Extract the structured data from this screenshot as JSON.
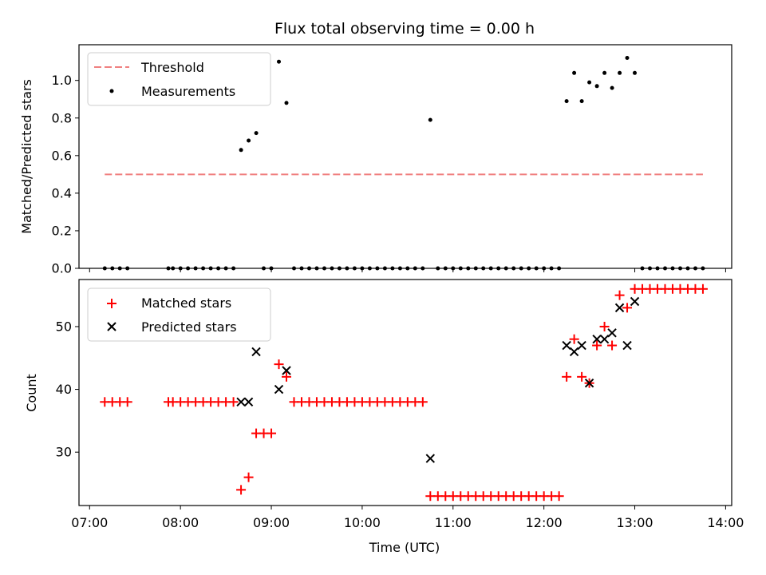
{
  "chart_data": [
    {
      "type": "scatter",
      "title": "Flux total observing time = 0.00 h",
      "xlabel": "",
      "ylabel": "Matched/Predicted stars",
      "ylim": [
        0,
        1.19
      ],
      "xlim": [
        "06:53",
        "14:04"
      ],
      "yticks": [
        "0.0",
        "0.2",
        "0.4",
        "0.6",
        "0.8",
        "1.0"
      ],
      "legend_position": "top-left",
      "grid": false,
      "threshold": {
        "name": "Threshold",
        "value": 0.5,
        "x_start": "07:10",
        "x_end": "13:45",
        "color": "#f08080",
        "style": "dashed"
      },
      "series": [
        {
          "name": "Measurements",
          "color": "#000000",
          "marker": "dot",
          "points": [
            [
              "07:10",
              0.0
            ],
            [
              "07:15",
              0.0
            ],
            [
              "07:20",
              0.0
            ],
            [
              "07:25",
              0.0
            ],
            [
              "07:52",
              0.0
            ],
            [
              "07:55",
              0.0
            ],
            [
              "08:00",
              0.0
            ],
            [
              "08:05",
              0.0
            ],
            [
              "08:10",
              0.0
            ],
            [
              "08:15",
              0.0
            ],
            [
              "08:20",
              0.0
            ],
            [
              "08:25",
              0.0
            ],
            [
              "08:30",
              0.0
            ],
            [
              "08:35",
              0.0
            ],
            [
              "08:40",
              0.63
            ],
            [
              "08:45",
              0.68
            ],
            [
              "08:50",
              0.72
            ],
            [
              "08:55",
              0.0
            ],
            [
              "09:00",
              0.0
            ],
            [
              "09:05",
              1.1
            ],
            [
              "09:10",
              0.88
            ],
            [
              "09:15",
              0.0
            ],
            [
              "09:20",
              0.0
            ],
            [
              "09:25",
              0.0
            ],
            [
              "09:30",
              0.0
            ],
            [
              "09:35",
              0.0
            ],
            [
              "09:40",
              0.0
            ],
            [
              "09:45",
              0.0
            ],
            [
              "09:50",
              0.0
            ],
            [
              "09:55",
              0.0
            ],
            [
              "10:00",
              0.0
            ],
            [
              "10:05",
              0.0
            ],
            [
              "10:10",
              0.0
            ],
            [
              "10:15",
              0.0
            ],
            [
              "10:20",
              0.0
            ],
            [
              "10:25",
              0.0
            ],
            [
              "10:30",
              0.0
            ],
            [
              "10:35",
              0.0
            ],
            [
              "10:40",
              0.0
            ],
            [
              "10:45",
              0.79
            ],
            [
              "10:50",
              0.0
            ],
            [
              "10:55",
              0.0
            ],
            [
              "11:00",
              0.0
            ],
            [
              "11:05",
              0.0
            ],
            [
              "11:10",
              0.0
            ],
            [
              "11:15",
              0.0
            ],
            [
              "11:20",
              0.0
            ],
            [
              "11:25",
              0.0
            ],
            [
              "11:30",
              0.0
            ],
            [
              "11:35",
              0.0
            ],
            [
              "11:40",
              0.0
            ],
            [
              "11:45",
              0.0
            ],
            [
              "11:50",
              0.0
            ],
            [
              "11:55",
              0.0
            ],
            [
              "12:00",
              0.0
            ],
            [
              "12:05",
              0.0
            ],
            [
              "12:10",
              0.0
            ],
            [
              "12:15",
              0.89
            ],
            [
              "12:20",
              1.04
            ],
            [
              "12:25",
              0.89
            ],
            [
              "12:30",
              0.99
            ],
            [
              "12:35",
              0.97
            ],
            [
              "12:40",
              1.04
            ],
            [
              "12:45",
              0.96
            ],
            [
              "12:50",
              1.04
            ],
            [
              "12:55",
              1.12
            ],
            [
              "13:00",
              1.04
            ],
            [
              "13:05",
              0.0
            ],
            [
              "13:10",
              0.0
            ],
            [
              "13:15",
              0.0
            ],
            [
              "13:20",
              0.0
            ],
            [
              "13:25",
              0.0
            ],
            [
              "13:30",
              0.0
            ],
            [
              "13:35",
              0.0
            ],
            [
              "13:40",
              0.0
            ],
            [
              "13:45",
              0.0
            ]
          ]
        }
      ]
    },
    {
      "type": "scatter",
      "title": "",
      "xlabel": "Time (UTC)",
      "ylabel": "Count",
      "ylim": [
        21.5,
        57.5
      ],
      "xlim": [
        "06:53",
        "14:04"
      ],
      "yticks": [
        "30",
        "40",
        "50"
      ],
      "xticks": [
        "07:00",
        "08:00",
        "09:00",
        "10:00",
        "11:00",
        "12:00",
        "13:00",
        "14:00"
      ],
      "legend_position": "top-left",
      "grid": false,
      "series": [
        {
          "name": "Matched stars",
          "color": "#ff0000",
          "marker": "plus",
          "points": [
            [
              "07:10",
              38
            ],
            [
              "07:15",
              38
            ],
            [
              "07:20",
              38
            ],
            [
              "07:25",
              38
            ],
            [
              "07:52",
              38
            ],
            [
              "07:55",
              38
            ],
            [
              "08:00",
              38
            ],
            [
              "08:05",
              38
            ],
            [
              "08:10",
              38
            ],
            [
              "08:15",
              38
            ],
            [
              "08:20",
              38
            ],
            [
              "08:25",
              38
            ],
            [
              "08:30",
              38
            ],
            [
              "08:35",
              38
            ],
            [
              "08:40",
              24
            ],
            [
              "08:45",
              26
            ],
            [
              "08:50",
              33
            ],
            [
              "08:55",
              33
            ],
            [
              "09:00",
              33
            ],
            [
              "09:05",
              44
            ],
            [
              "09:10",
              42
            ],
            [
              "09:15",
              38
            ],
            [
              "09:20",
              38
            ],
            [
              "09:25",
              38
            ],
            [
              "09:30",
              38
            ],
            [
              "09:35",
              38
            ],
            [
              "09:40",
              38
            ],
            [
              "09:45",
              38
            ],
            [
              "09:50",
              38
            ],
            [
              "09:55",
              38
            ],
            [
              "10:00",
              38
            ],
            [
              "10:05",
              38
            ],
            [
              "10:10",
              38
            ],
            [
              "10:15",
              38
            ],
            [
              "10:20",
              38
            ],
            [
              "10:25",
              38
            ],
            [
              "10:30",
              38
            ],
            [
              "10:35",
              38
            ],
            [
              "10:40",
              38
            ],
            [
              "10:45",
              23
            ],
            [
              "10:50",
              23
            ],
            [
              "10:55",
              23
            ],
            [
              "11:00",
              23
            ],
            [
              "11:05",
              23
            ],
            [
              "11:10",
              23
            ],
            [
              "11:15",
              23
            ],
            [
              "11:20",
              23
            ],
            [
              "11:25",
              23
            ],
            [
              "11:30",
              23
            ],
            [
              "11:35",
              23
            ],
            [
              "11:40",
              23
            ],
            [
              "11:45",
              23
            ],
            [
              "11:50",
              23
            ],
            [
              "11:55",
              23
            ],
            [
              "12:00",
              23
            ],
            [
              "12:05",
              23
            ],
            [
              "12:10",
              23
            ],
            [
              "12:15",
              42
            ],
            [
              "12:20",
              48
            ],
            [
              "12:25",
              42
            ],
            [
              "12:30",
              41
            ],
            [
              "12:35",
              47
            ],
            [
              "12:40",
              50
            ],
            [
              "12:45",
              47
            ],
            [
              "12:50",
              55
            ],
            [
              "12:55",
              53
            ],
            [
              "13:00",
              56
            ],
            [
              "13:05",
              56
            ],
            [
              "13:10",
              56
            ],
            [
              "13:15",
              56
            ],
            [
              "13:20",
              56
            ],
            [
              "13:25",
              56
            ],
            [
              "13:30",
              56
            ],
            [
              "13:35",
              56
            ],
            [
              "13:40",
              56
            ],
            [
              "13:45",
              56
            ]
          ]
        },
        {
          "name": "Predicted stars",
          "color": "#000000",
          "marker": "x",
          "points": [
            [
              "08:40",
              38
            ],
            [
              "08:45",
              38
            ],
            [
              "08:50",
              46
            ],
            [
              "09:05",
              40
            ],
            [
              "09:10",
              43
            ],
            [
              "10:45",
              29
            ],
            [
              "12:15",
              47
            ],
            [
              "12:20",
              46
            ],
            [
              "12:25",
              47
            ],
            [
              "12:30",
              41
            ],
            [
              "12:35",
              48
            ],
            [
              "12:40",
              48
            ],
            [
              "12:45",
              49
            ],
            [
              "12:50",
              53
            ],
            [
              "12:55",
              47
            ],
            [
              "13:00",
              54
            ]
          ]
        }
      ]
    }
  ]
}
